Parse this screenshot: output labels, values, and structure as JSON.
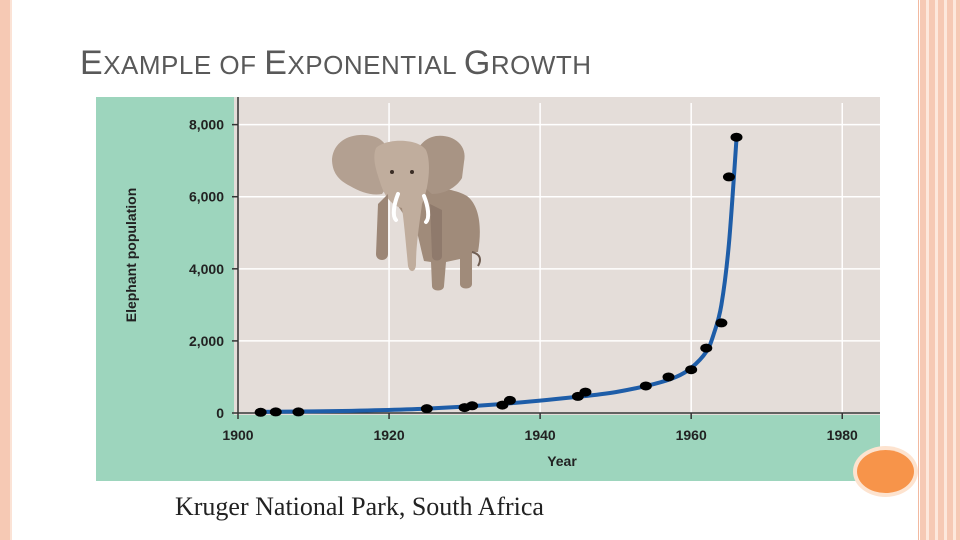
{
  "slide": {
    "title_parts": [
      {
        "text": "E",
        "small": false
      },
      {
        "text": "XAMPLE OF ",
        "small": true
      },
      {
        "text": "E",
        "small": false
      },
      {
        "text": "XPONENTIAL ",
        "small": true
      },
      {
        "text": "G",
        "small": false
      },
      {
        "text": "ROWTH",
        "small": true
      }
    ],
    "caption": "Kruger National Park, South Africa"
  },
  "colors": {
    "plot_bg": "#e4ddd9",
    "left_panel": "#9dd5bd",
    "curve": "#1e5da8",
    "points": "#000000",
    "accent": "#f7944a"
  },
  "illustration": "elephant-icon",
  "chart_data": {
    "type": "scatter",
    "title": "",
    "xlabel": "Year",
    "ylabel": "Elephant population",
    "xlim": [
      1900,
      1985
    ],
    "ylim": [
      0,
      8600
    ],
    "x_ticks": [
      1900,
      1920,
      1940,
      1960,
      1980
    ],
    "x_tick_labels": [
      "1900",
      "1920",
      "1940",
      "1960",
      "1980"
    ],
    "y_ticks": [
      0,
      2000,
      4000,
      6000,
      8000
    ],
    "y_tick_labels": [
      "0",
      "2,000",
      "4,000",
      "6,000",
      "8,000"
    ],
    "grid": true,
    "series": [
      {
        "values": [
          {
            "x": 1903,
            "y": 20
          },
          {
            "x": 1905,
            "y": 30
          },
          {
            "x": 1908,
            "y": 30
          },
          {
            "x": 1925,
            "y": 120
          },
          {
            "x": 1930,
            "y": 150
          },
          {
            "x": 1931,
            "y": 200
          },
          {
            "x": 1935,
            "y": 220
          },
          {
            "x": 1936,
            "y": 350
          },
          {
            "x": 1945,
            "y": 460
          },
          {
            "x": 1946,
            "y": 580
          },
          {
            "x": 1954,
            "y": 750
          },
          {
            "x": 1957,
            "y": 1000
          },
          {
            "x": 1960,
            "y": 1200
          },
          {
            "x": 1962,
            "y": 1800
          },
          {
            "x": 1964,
            "y": 2500
          },
          {
            "x": 1965,
            "y": 6550
          },
          {
            "x": 1966,
            "y": 7650
          }
        ]
      }
    ],
    "trend_curve": [
      {
        "x": 1903,
        "y": 30
      },
      {
        "x": 1915,
        "y": 60
      },
      {
        "x": 1925,
        "y": 120
      },
      {
        "x": 1935,
        "y": 250
      },
      {
        "x": 1945,
        "y": 450
      },
      {
        "x": 1950,
        "y": 580
      },
      {
        "x": 1955,
        "y": 800
      },
      {
        "x": 1958,
        "y": 1000
      },
      {
        "x": 1960,
        "y": 1250
      },
      {
        "x": 1962,
        "y": 1700
      },
      {
        "x": 1963,
        "y": 2200
      },
      {
        "x": 1964,
        "y": 3000
      },
      {
        "x": 1965,
        "y": 4700
      },
      {
        "x": 1966,
        "y": 7600
      }
    ]
  }
}
